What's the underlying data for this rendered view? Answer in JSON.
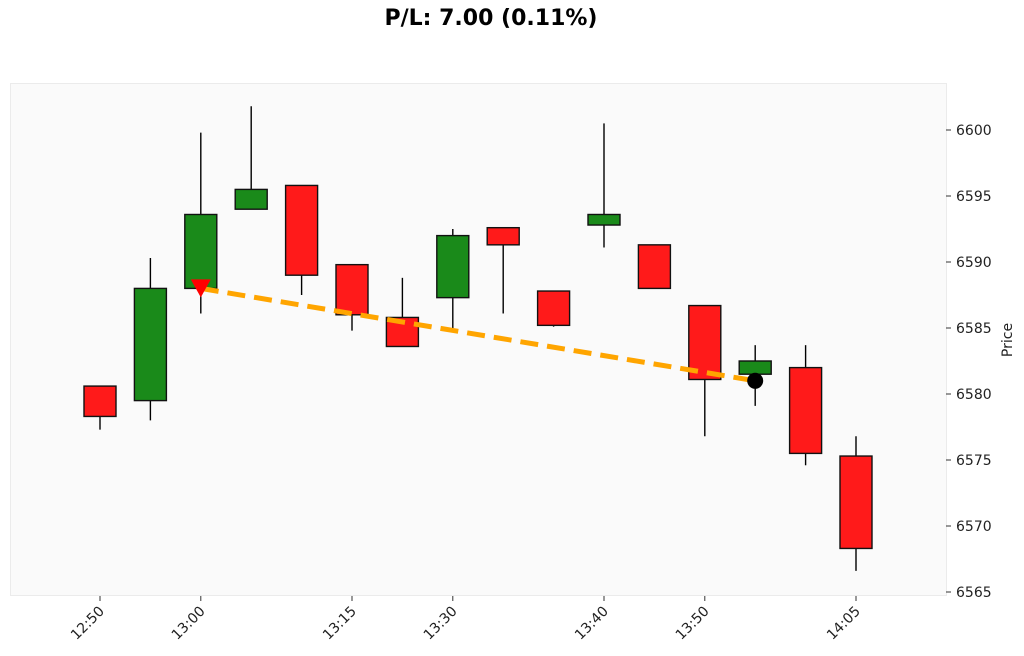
{
  "title": "P/L: 7.00 (0.11%)",
  "colors": {
    "up": "#1a8a1a",
    "down": "#ff1a1a",
    "trade_line": "#ffa500",
    "entry_marker": "#ff0000",
    "exit_marker": "#000000",
    "plot_bg": "#fafafa"
  },
  "chart_data": {
    "type": "candlestick",
    "title": "P/L: 7.00 (0.11%)",
    "xlabel": "",
    "ylabel": "Price",
    "ylim": [
      6565,
      6603
    ],
    "yticks": [
      6565,
      6570,
      6575,
      6580,
      6585,
      6590,
      6595,
      6600
    ],
    "xtick_labels": [
      "12:50",
      "13:00",
      "13:15",
      "13:30",
      "13:40",
      "13:50",
      "14:05"
    ],
    "xtick_candle_index": [
      0,
      2,
      5,
      7,
      10,
      12,
      15
    ],
    "candles": [
      {
        "i": 0,
        "open": 6580.6,
        "high": 6580.6,
        "low": 6577.3,
        "close": 6578.3
      },
      {
        "i": 1,
        "open": 6579.5,
        "high": 6590.3,
        "low": 6578.0,
        "close": 6588.0
      },
      {
        "i": 2,
        "open": 6588.0,
        "high": 6599.8,
        "low": 6586.1,
        "close": 6593.6
      },
      {
        "i": 3,
        "open": 6594.0,
        "high": 6601.8,
        "low": 6594.0,
        "close": 6595.5
      },
      {
        "i": 4,
        "open": 6595.8,
        "high": 6595.8,
        "low": 6587.5,
        "close": 6589.0
      },
      {
        "i": 5,
        "open": 6589.8,
        "high": 6589.8,
        "low": 6584.8,
        "close": 6586.0
      },
      {
        "i": 6,
        "open": 6585.8,
        "high": 6588.8,
        "low": 6583.6,
        "close": 6583.6
      },
      {
        "i": 7,
        "open": 6587.3,
        "high": 6592.5,
        "low": 6585.0,
        "close": 6592.0
      },
      {
        "i": 8,
        "open": 6592.6,
        "high": 6592.6,
        "low": 6586.1,
        "close": 6591.3
      },
      {
        "i": 9,
        "open": 6587.8,
        "high": 6587.8,
        "low": 6585.1,
        "close": 6585.2
      },
      {
        "i": 10,
        "open": 6592.8,
        "high": 6600.5,
        "low": 6591.1,
        "close": 6593.6
      },
      {
        "i": 11,
        "open": 6591.3,
        "high": 6591.3,
        "low": 6588.0,
        "close": 6588.0
      },
      {
        "i": 12,
        "open": 6586.7,
        "high": 6586.7,
        "low": 6576.8,
        "close": 6581.1
      },
      {
        "i": 13,
        "open": 6581.5,
        "high": 6583.7,
        "low": 6579.1,
        "close": 6582.5
      },
      {
        "i": 14,
        "open": 6582.0,
        "high": 6583.7,
        "low": 6574.6,
        "close": 6575.5
      },
      {
        "i": 15,
        "open": 6575.3,
        "high": 6576.8,
        "low": 6566.6,
        "close": 6568.3
      }
    ],
    "trade": {
      "entry": {
        "candle_index": 2,
        "price": 6588.0,
        "marker": "down-triangle",
        "color": "#ff0000"
      },
      "exit": {
        "candle_index": 13,
        "price": 6581.0,
        "marker": "circle",
        "color": "#000000"
      },
      "line_style": "dashed",
      "line_color": "#ffa500",
      "pl": 7.0,
      "pl_pct": 0.11
    },
    "grid": false,
    "y_axis_position": "right"
  }
}
